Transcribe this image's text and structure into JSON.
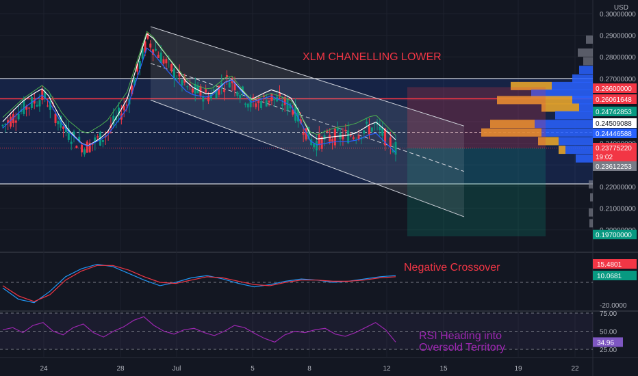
{
  "currency": "USD",
  "annotations": {
    "main": "XLM CHANELLING LOWER",
    "macd": "Negative Crossover",
    "rsi_line1": "RSI Heading into",
    "rsi_line2": "Oversold Territory"
  },
  "chart_data": [
    {
      "type": "candlestick",
      "title": "",
      "ylim": [
        0.195,
        0.305
      ],
      "y_ticks": [
        "0.20000000",
        "0.21000000",
        "0.22000000",
        "0.23000000",
        "0.24000000",
        "0.25000000",
        "0.26000000",
        "0.27000000",
        "0.28000000",
        "0.29000000",
        "0.30000000"
      ],
      "x_ticks": [
        "24",
        "28",
        "Jul",
        "5",
        "8",
        "12",
        "15",
        "19",
        "22"
      ],
      "price_tags": [
        {
          "label": "0.26600000",
          "color": "#f23645"
        },
        {
          "label": "0.26061648",
          "color": "#f23645"
        },
        {
          "label": "0.24742853",
          "color": "#089981"
        },
        {
          "label": "0.24509088",
          "color": "#ffffff"
        },
        {
          "label": "0.24446588",
          "color": "#2962ff"
        },
        {
          "label": "0.23775220",
          "color": "#f23645"
        },
        {
          "label": "19:02",
          "color": "#f23645"
        },
        {
          "label": "0.23612253",
          "color": "#787b86"
        },
        {
          "label": "0.19700000",
          "color": "#089981"
        }
      ],
      "levels": {
        "range_high": 0.27,
        "range_low": 0.2212,
        "resistance": 0.26062,
        "mid": 0.24509,
        "last": 0.23775,
        "target": 0.197,
        "entry": 0.266
      },
      "channel": {
        "upper_start": 0.294,
        "upper_end": 0.248,
        "lower_start": 0.26,
        "lower_end": 0.206
      },
      "candles_ohlc_sample": [
        [
          0.245,
          0.252,
          0.238,
          0.248
        ],
        [
          0.248,
          0.26,
          0.241,
          0.256
        ],
        [
          0.256,
          0.266,
          0.25,
          0.262
        ],
        [
          0.262,
          0.268,
          0.243,
          0.246
        ],
        [
          0.246,
          0.252,
          0.232,
          0.238
        ],
        [
          0.238,
          0.249,
          0.23,
          0.244
        ],
        [
          0.244,
          0.262,
          0.242,
          0.258
        ],
        [
          0.258,
          0.295,
          0.256,
          0.288
        ],
        [
          0.288,
          0.291,
          0.27,
          0.276
        ],
        [
          0.276,
          0.28,
          0.26,
          0.265
        ],
        [
          0.265,
          0.27,
          0.258,
          0.262
        ],
        [
          0.262,
          0.273,
          0.259,
          0.27
        ],
        [
          0.27,
          0.272,
          0.254,
          0.258
        ],
        [
          0.258,
          0.264,
          0.25,
          0.261
        ],
        [
          0.261,
          0.269,
          0.255,
          0.257
        ],
        [
          0.257,
          0.259,
          0.236,
          0.24
        ],
        [
          0.24,
          0.245,
          0.234,
          0.243
        ],
        [
          0.243,
          0.248,
          0.239,
          0.244
        ],
        [
          0.244,
          0.251,
          0.24,
          0.248
        ],
        [
          0.248,
          0.25,
          0.236,
          0.2378
        ]
      ]
    },
    {
      "type": "line",
      "title": "MACD",
      "ylim": [
        -20,
        20
      ],
      "y_ticks": [
        "-20.0000",
        "10.0681",
        "15.4801"
      ],
      "value_tags": [
        {
          "label": "15.4801",
          "color": "#f23645"
        },
        {
          "label": "10.0681",
          "color": "#089981"
        }
      ],
      "series": [
        {
          "values": [
            -5,
            -15,
            -18,
            -8,
            5,
            12,
            16,
            14,
            8,
            2,
            -3,
            0,
            4,
            6,
            3,
            -1,
            -4,
            -2,
            1,
            3,
            2,
            0,
            1,
            3,
            5,
            6
          ]
        },
        {
          "values": [
            -3,
            -12,
            -17,
            -11,
            2,
            10,
            15,
            15,
            11,
            5,
            0,
            -1,
            2,
            5,
            4,
            1,
            -2,
            -3,
            0,
            2,
            2,
            1,
            1,
            2,
            4,
            5
          ]
        }
      ]
    },
    {
      "type": "line",
      "title": "RSI",
      "ylim": [
        25,
        75
      ],
      "y_ticks": [
        "25.00",
        "50.00",
        "75.00"
      ],
      "value_tag": {
        "label": "34.96",
        "color": "#7e57c2"
      },
      "series": [
        {
          "values": [
            52,
            55,
            48,
            58,
            62,
            50,
            45,
            55,
            60,
            48,
            42,
            50,
            56,
            65,
            70,
            58,
            50,
            46,
            52,
            54,
            48,
            44,
            50,
            58,
            55,
            47,
            40,
            35,
            45,
            50,
            48,
            52,
            54,
            46,
            43,
            48,
            55,
            62,
            52,
            34.96
          ]
        }
      ]
    }
  ]
}
